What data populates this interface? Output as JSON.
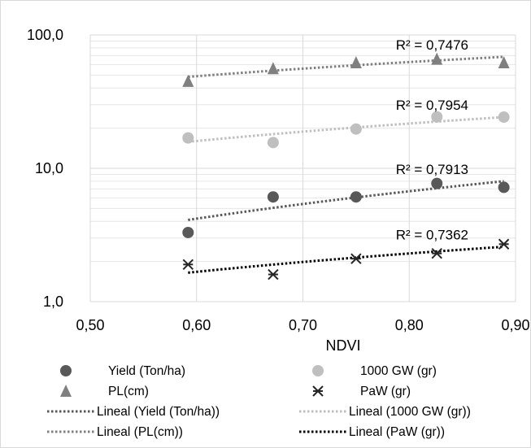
{
  "chart_data": {
    "type": "scatter",
    "xlabel": "NDVI",
    "ylabel": "",
    "xlim": [
      0.5,
      0.9
    ],
    "ylim": [
      1,
      100
    ],
    "y_scale": "log",
    "x_ticks": [
      "0,50",
      "0,60",
      "0,70",
      "0,80",
      "0,90"
    ],
    "y_ticks": [
      "1,0",
      "10,0",
      "100,0"
    ],
    "grid": true,
    "legend_position": "bottom",
    "x": [
      0.592,
      0.672,
      0.75,
      0.826,
      0.889
    ],
    "series": [
      {
        "name": "Yield (Ton/ha)",
        "marker": "circle",
        "color": "#595959",
        "values": [
          3.3,
          6.1,
          6.1,
          7.7,
          7.2
        ],
        "trend_name": "Lineal (Yield (Ton/ha))",
        "trend_color": "#595959",
        "trend_start": 4.1,
        "trend_end": 8.0,
        "r2_label": "R² = 0,7913"
      },
      {
        "name": "1000 GW (gr)",
        "marker": "circle",
        "color": "#bfbfbf",
        "values": [
          16.9,
          15.6,
          19.7,
          24.3,
          24.2
        ],
        "trend_name": "Lineal (1000 GW (gr))",
        "trend_color": "#bfbfbf",
        "trend_start": 15.8,
        "trend_end": 24.2,
        "r2_label": "R² = 0,7954"
      },
      {
        "name": "PL(cm)",
        "marker": "triangle",
        "color": "#808080",
        "values": [
          45,
          56,
          62,
          66,
          62
        ],
        "trend_name": "Lineal (PL(cm))",
        "trend_color": "#808080",
        "trend_start": 48.5,
        "trend_end": 68.5,
        "r2_label": "R² = 0,7476"
      },
      {
        "name": "PaW (gr)",
        "marker": "asterisk",
        "color": "#262626",
        "values": [
          1.9,
          1.6,
          2.1,
          2.3,
          2.7
        ],
        "trend_name": "Lineal (PaW (gr))",
        "trend_color": "#000000",
        "trend_start": 1.65,
        "trend_end": 2.58,
        "r2_label": "R² = 0,7362"
      }
    ]
  }
}
